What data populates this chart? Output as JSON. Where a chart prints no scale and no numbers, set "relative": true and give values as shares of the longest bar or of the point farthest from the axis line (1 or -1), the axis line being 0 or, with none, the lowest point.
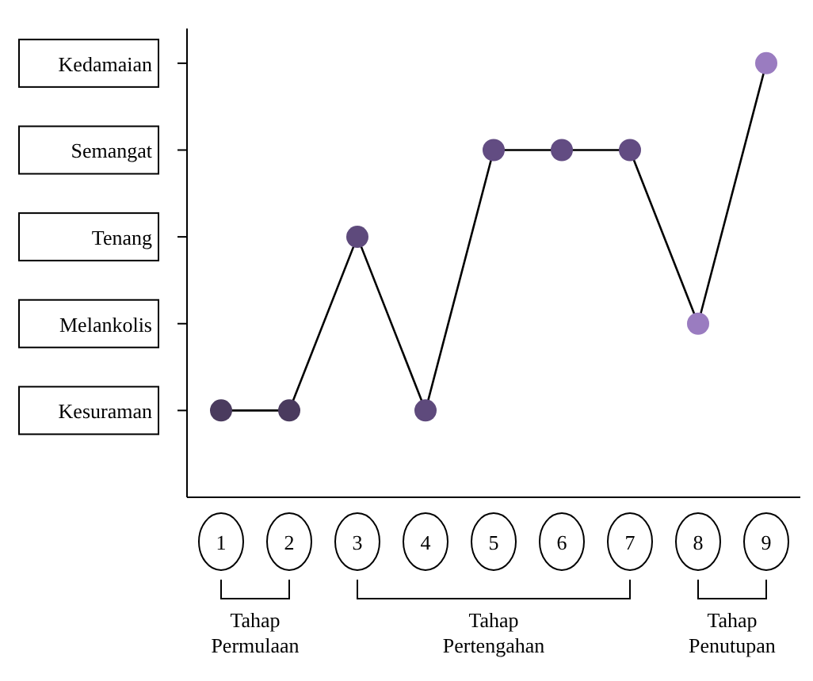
{
  "chart_data": {
    "type": "line",
    "categories": [
      "1",
      "2",
      "3",
      "4",
      "5",
      "6",
      "7",
      "8",
      "9"
    ],
    "relative": true,
    "series": [
      {
        "color": "#000000",
        "colors": [
          "#4a3b5e",
          "#4a3b5e",
          "#5e4a7c",
          "#5e4a7c",
          "#624c82",
          "#624c82",
          "#624c82",
          "#9a7cc0",
          "#9a7cc0"
        ],
        "values": [
          0.2,
          0.2,
          0.6,
          0.2,
          0.8,
          0.8,
          0.8,
          0.4,
          1
        ]
      }
    ],
    "annotations": [
      "Kedamaian",
      "Semangat",
      "Tenang",
      "Melankolis",
      "Kesuraman",
      "Tahap Permulaan",
      "Tahap Pertengahan",
      "Tahap Penutupan"
    ],
    "marker": "circle",
    "line_style": "solid"
  }
}
